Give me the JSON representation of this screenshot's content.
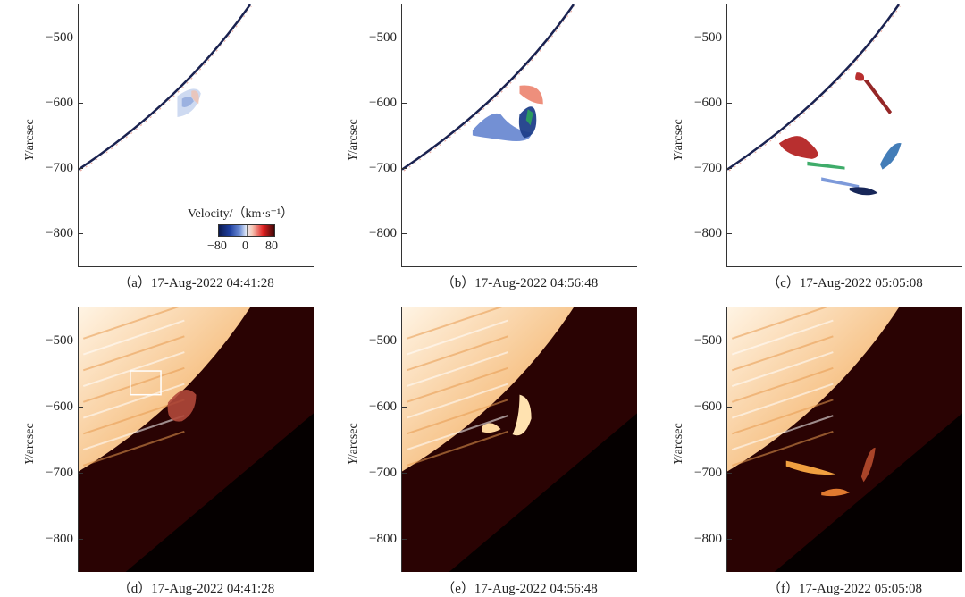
{
  "figure": {
    "y_axis_label_prefix": "Y",
    "y_axis_label_suffix": "/arcsec",
    "y_ticks": [
      "−500",
      "−600",
      "−700",
      "−800"
    ],
    "colorbar": {
      "title": "Velocity/（km·s⁻¹）",
      "min_label": "−80",
      "mid_label": "0",
      "max_label": "80",
      "range": [
        -80,
        80
      ],
      "colors": {
        "negative": "#0b1a4f",
        "zero": "#e8eef9",
        "positive": "#3b0606"
      }
    },
    "panels": [
      {
        "id": "a",
        "caption": "（a）17-Aug-2022 04:41:28",
        "type": "doppler-velocity"
      },
      {
        "id": "b",
        "caption": "（b）17-Aug-2022 04:56:48",
        "type": "doppler-velocity"
      },
      {
        "id": "c",
        "caption": "（c）17-Aug-2022 05:05:08",
        "type": "doppler-velocity"
      },
      {
        "id": "d",
        "caption": "（d）17-Aug-2022 04:41:28",
        "type": "h-alpha-intensity"
      },
      {
        "id": "e",
        "caption": "（e）17-Aug-2022 04:56:48",
        "type": "h-alpha-intensity"
      },
      {
        "id": "f",
        "caption": "（f）17-Aug-2022 05:05:08",
        "type": "h-alpha-intensity"
      }
    ]
  },
  "chart_data": {
    "type": "heatmap",
    "ylabel": "Y/arcsec",
    "ylim": [
      -850,
      -450
    ],
    "yticks": [
      -500,
      -600,
      -700,
      -800
    ],
    "colorbar_label": "Velocity/(km·s^-1)",
    "colorbar_range": [
      -80,
      80
    ],
    "panels": [
      "(a) 17-Aug-2022 04:41:28",
      "(b) 17-Aug-2022 04:56:48",
      "(c) 17-Aug-2022 05:05:08",
      "(d) 17-Aug-2022 04:41:28",
      "(e) 17-Aug-2022 04:56:48",
      "(f) 17-Aug-2022 05:05:08"
    ]
  }
}
